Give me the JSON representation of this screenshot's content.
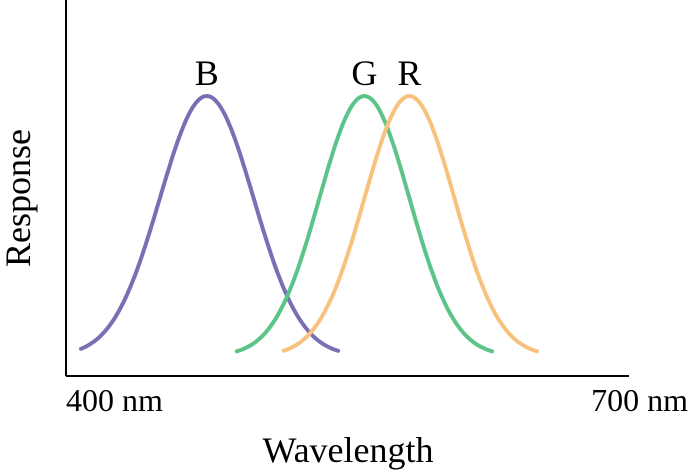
{
  "chart_data": {
    "type": "line",
    "xlabel": "Wavelength",
    "ylabel": "Response",
    "x_tick_labels": [
      "400 nm",
      "700 nm"
    ],
    "xlim": [
      400,
      700
    ],
    "ylim": [
      0,
      1.15
    ],
    "grid": false,
    "legend": "none",
    "series": [
      {
        "name": "B",
        "color": "#7a6fb3",
        "peak": 475,
        "width": 25,
        "x_range": [
          408,
          545
        ]
      },
      {
        "name": "G",
        "color": "#5cc488",
        "peak": 559,
        "width": 24,
        "x_range": [
          491,
          627
        ]
      },
      {
        "name": "R",
        "color": "#f7c27d",
        "peak": 583,
        "width": 24,
        "x_range": [
          516,
          651
        ]
      }
    ]
  }
}
